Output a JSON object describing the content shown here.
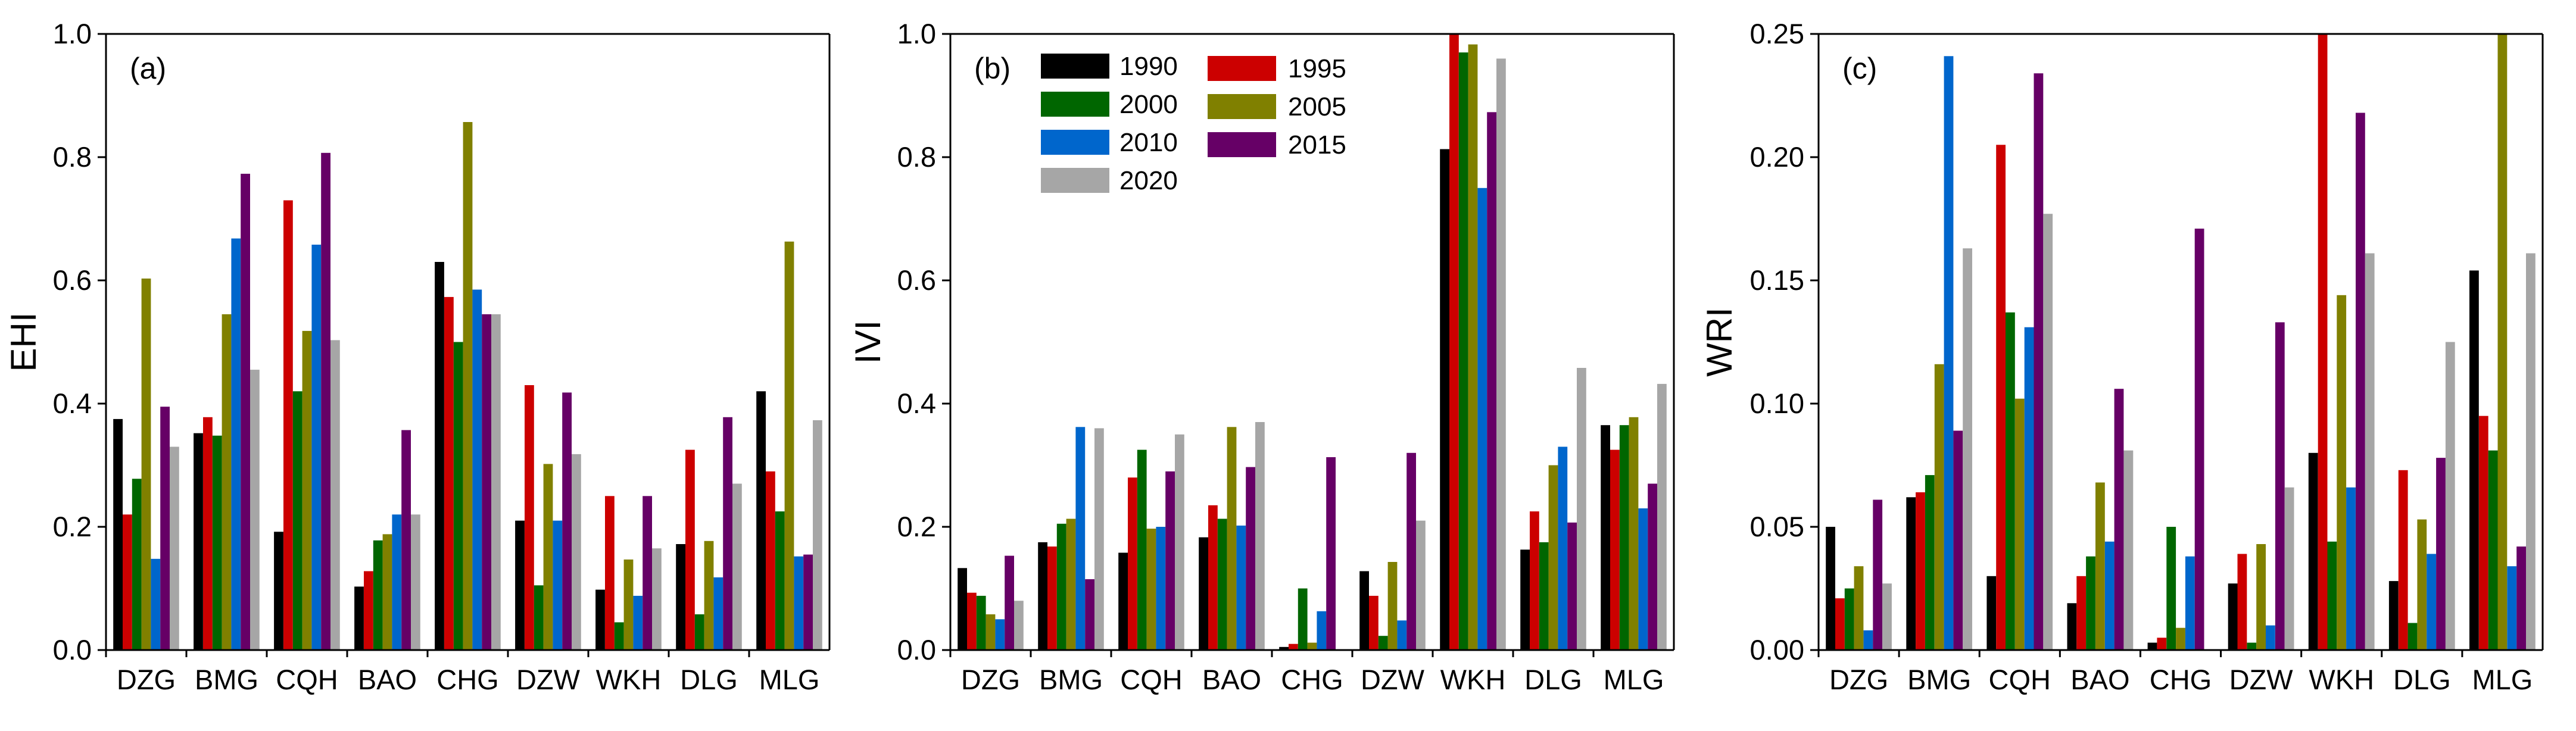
{
  "chart_data": [
    {
      "type": "bar",
      "panel_label": "(a)",
      "ylabel": "EHI",
      "ylim": [
        0,
        1.0
      ],
      "yticks": [
        "0.0",
        "0.2",
        "0.4",
        "0.6",
        "0.8",
        "1.0"
      ],
      "yticks_values": [
        0,
        0.2,
        0.4,
        0.6,
        0.8,
        1.0
      ],
      "categories": [
        "DZG",
        "BMG",
        "CQH",
        "BAO",
        "CHG",
        "DZW",
        "WKH",
        "DLG",
        "MLG"
      ],
      "series": [
        {
          "name": "1990",
          "values": [
            0.375,
            0.352,
            0.192,
            0.103,
            0.63,
            0.21,
            0.098,
            0.172,
            0.42
          ]
        },
        {
          "name": "1995",
          "values": [
            0.22,
            0.378,
            0.73,
            0.128,
            0.573,
            0.43,
            0.25,
            0.325,
            0.29
          ]
        },
        {
          "name": "2000",
          "values": [
            0.278,
            0.348,
            0.42,
            0.178,
            0.5,
            0.105,
            0.045,
            0.058,
            0.225
          ]
        },
        {
          "name": "2005",
          "values": [
            0.603,
            0.545,
            0.518,
            0.188,
            0.857,
            0.302,
            0.147,
            0.177,
            0.663
          ]
        },
        {
          "name": "2010",
          "values": [
            0.148,
            0.668,
            0.658,
            0.22,
            0.585,
            0.21,
            0.088,
            0.118,
            0.152
          ]
        },
        {
          "name": "2015",
          "values": [
            0.395,
            0.773,
            0.807,
            0.357,
            0.545,
            0.418,
            0.25,
            0.378,
            0.155
          ]
        },
        {
          "name": "2020",
          "values": [
            0.33,
            0.455,
            0.503,
            0.22,
            0.545,
            0.318,
            0.165,
            0.27,
            0.373
          ]
        }
      ]
    },
    {
      "type": "bar",
      "panel_label": "(b)",
      "ylabel": "IVI",
      "ylim": [
        0,
        1.0
      ],
      "yticks": [
        "0.0",
        "0.2",
        "0.4",
        "0.6",
        "0.8",
        "1.0"
      ],
      "yticks_values": [
        0,
        0.2,
        0.4,
        0.6,
        0.8,
        1.0
      ],
      "categories": [
        "DZG",
        "BMG",
        "CQH",
        "BAO",
        "CHG",
        "DZW",
        "WKH",
        "DLG",
        "MLG"
      ],
      "series": [
        {
          "name": "1990",
          "values": [
            0.133,
            0.175,
            0.158,
            0.183,
            0.005,
            0.128,
            0.813,
            0.163,
            0.365
          ]
        },
        {
          "name": "1995",
          "values": [
            0.093,
            0.168,
            0.28,
            0.235,
            0.01,
            0.088,
            1.0,
            0.225,
            0.325
          ]
        },
        {
          "name": "2000",
          "values": [
            0.088,
            0.205,
            0.325,
            0.213,
            0.1,
            0.023,
            0.97,
            0.175,
            0.365
          ]
        },
        {
          "name": "2005",
          "values": [
            0.058,
            0.213,
            0.197,
            0.362,
            0.012,
            0.143,
            0.983,
            0.3,
            0.378
          ]
        },
        {
          "name": "2010",
          "values": [
            0.05,
            0.362,
            0.2,
            0.202,
            0.063,
            0.048,
            0.75,
            0.33,
            0.23
          ]
        },
        {
          "name": "2015",
          "values": [
            0.153,
            0.115,
            0.29,
            0.297,
            0.313,
            0.32,
            0.873,
            0.207,
            0.27
          ]
        },
        {
          "name": "2020",
          "values": [
            0.08,
            0.36,
            0.35,
            0.37,
            0.0,
            0.21,
            0.96,
            0.458,
            0.432
          ]
        }
      ]
    },
    {
      "type": "bar",
      "panel_label": "(c)",
      "ylabel": "WRI",
      "ylim": [
        0,
        0.25
      ],
      "yticks": [
        "0.00",
        "0.05",
        "0.10",
        "0.15",
        "0.20",
        "0.25"
      ],
      "yticks_values": [
        0,
        0.05,
        0.1,
        0.15,
        0.2,
        0.25
      ],
      "categories": [
        "DZG",
        "BMG",
        "CQH",
        "BAO",
        "CHG",
        "DZW",
        "WKH",
        "DLG",
        "MLG"
      ],
      "series": [
        {
          "name": "1990",
          "values": [
            0.05,
            0.062,
            0.03,
            0.019,
            0.003,
            0.027,
            0.08,
            0.028,
            0.154
          ]
        },
        {
          "name": "1995",
          "values": [
            0.021,
            0.064,
            0.205,
            0.03,
            0.005,
            0.039,
            0.25,
            0.073,
            0.095
          ]
        },
        {
          "name": "2000",
          "values": [
            0.025,
            0.071,
            0.137,
            0.038,
            0.05,
            0.003,
            0.044,
            0.011,
            0.081
          ]
        },
        {
          "name": "2005",
          "values": [
            0.034,
            0.116,
            0.102,
            0.068,
            0.009,
            0.043,
            0.144,
            0.053,
            0.25
          ]
        },
        {
          "name": "2010",
          "values": [
            0.008,
            0.241,
            0.131,
            0.044,
            0.038,
            0.01,
            0.066,
            0.039,
            0.034
          ]
        },
        {
          "name": "2015",
          "values": [
            0.061,
            0.089,
            0.234,
            0.106,
            0.171,
            0.133,
            0.218,
            0.078,
            0.042
          ]
        },
        {
          "name": "2020",
          "values": [
            0.027,
            0.163,
            0.177,
            0.081,
            0.0,
            0.066,
            0.161,
            0.125,
            0.161
          ]
        }
      ]
    }
  ],
  "legend": {
    "entries": [
      {
        "name": "1990",
        "color": "#000000"
      },
      {
        "name": "1995",
        "color": "#cc0000"
      },
      {
        "name": "2000",
        "color": "#006600"
      },
      {
        "name": "2005",
        "color": "#808000"
      },
      {
        "name": "2010",
        "color": "#0066cc"
      },
      {
        "name": "2015",
        "color": "#660066"
      },
      {
        "name": "2020",
        "color": "#a6a6a6"
      }
    ]
  }
}
